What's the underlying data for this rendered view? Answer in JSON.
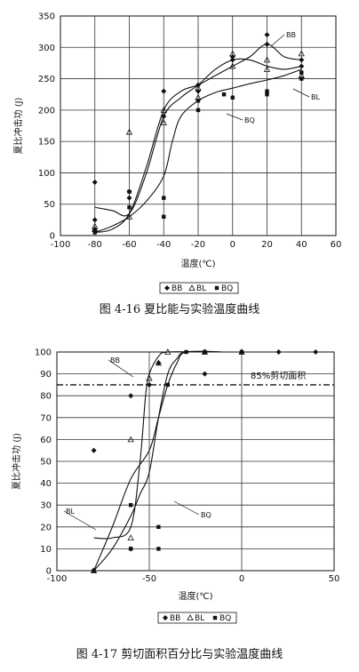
{
  "chart_data": [
    {
      "type": "scatter",
      "title": "",
      "caption": "图 4-16 夏比能与实验温度曲线",
      "xlabel": "温度(℃)",
      "ylabel": "夏比冲击功 (J)",
      "xlim": [
        -100,
        60
      ],
      "ylim": [
        0,
        350
      ],
      "xticks": [
        "-100",
        "-80",
        "-60",
        "-40",
        "-20",
        "0",
        "20",
        "40",
        "60"
      ],
      "yticks": [
        "0",
        "50",
        "100",
        "150",
        "200",
        "250",
        "300",
        "350"
      ],
      "grid": true,
      "legend_position": "bottom",
      "legend": [
        "BB",
        "BL",
        "BQ"
      ],
      "annotations": [
        "BB",
        "BL",
        "BQ"
      ],
      "series": [
        {
          "name": "BB",
          "marker": "diamond",
          "points": [
            [
              -80,
              85
            ],
            [
              -80,
              25
            ],
            [
              -80,
              10
            ],
            [
              -60,
              70
            ],
            [
              -60,
              60
            ],
            [
              -40,
              230
            ],
            [
              -40,
              190
            ],
            [
              -20,
              240
            ],
            [
              -20,
              230
            ],
            [
              0,
              280
            ],
            [
              0,
              285
            ],
            [
              20,
              320
            ],
            [
              20,
              305
            ],
            [
              40,
              270
            ],
            [
              40,
              280
            ]
          ],
          "curve": [
            [
              -80,
              5
            ],
            [
              -70,
              10
            ],
            [
              -60,
              35
            ],
            [
              -50,
              110
            ],
            [
              -40,
              200
            ],
            [
              -30,
              230
            ],
            [
              -20,
              240
            ],
            [
              -10,
              255
            ],
            [
              0,
              270
            ],
            [
              10,
              285
            ],
            [
              20,
              305
            ],
            [
              30,
              285
            ],
            [
              40,
              280
            ]
          ]
        },
        {
          "name": "BL",
          "marker": "triangle",
          "points": [
            [
              -80,
              15
            ],
            [
              -80,
              10
            ],
            [
              -60,
              165
            ],
            [
              -60,
              30
            ],
            [
              -40,
              200
            ],
            [
              -40,
              180
            ],
            [
              -20,
              235
            ],
            [
              -20,
              220
            ],
            [
              0,
              290
            ],
            [
              0,
              270
            ],
            [
              20,
              280
            ],
            [
              20,
              265
            ],
            [
              40,
              290
            ],
            [
              40,
              255
            ]
          ],
          "curve": [
            [
              -80,
              45
            ],
            [
              -70,
              40
            ],
            [
              -60,
              35
            ],
            [
              -50,
              100
            ],
            [
              -40,
              190
            ],
            [
              -30,
              220
            ],
            [
              -20,
              240
            ],
            [
              -10,
              265
            ],
            [
              0,
              280
            ],
            [
              10,
              280
            ],
            [
              20,
              270
            ],
            [
              30,
              265
            ],
            [
              40,
              270
            ]
          ]
        },
        {
          "name": "BQ",
          "marker": "square",
          "points": [
            [
              -80,
              8
            ],
            [
              -80,
              5
            ],
            [
              -60,
              70
            ],
            [
              -60,
              45
            ],
            [
              -40,
              60
            ],
            [
              -40,
              30
            ],
            [
              -20,
              200
            ],
            [
              -20,
              215
            ],
            [
              -5,
              225
            ],
            [
              0,
              220
            ],
            [
              20,
              230
            ],
            [
              20,
              225
            ],
            [
              40,
              260
            ],
            [
              40,
              250
            ]
          ],
          "curve": [
            [
              -80,
              5
            ],
            [
              -70,
              15
            ],
            [
              -60,
              30
            ],
            [
              -50,
              55
            ],
            [
              -40,
              95
            ],
            [
              -35,
              150
            ],
            [
              -30,
              190
            ],
            [
              -20,
              215
            ],
            [
              -10,
              228
            ],
            [
              0,
              235
            ],
            [
              10,
              242
            ],
            [
              20,
              248
            ],
            [
              30,
              255
            ],
            [
              40,
              265
            ]
          ]
        }
      ]
    },
    {
      "type": "scatter",
      "title": "",
      "caption": "图 4-17 剪切面积百分比与实验温度曲线",
      "xlabel": "温度(℃)",
      "ylabel": "夏比冲击功 (J)",
      "xlim": [
        -100,
        50
      ],
      "ylim": [
        0,
        100
      ],
      "xticks": [
        "-100",
        "-50",
        "0",
        "50"
      ],
      "yticks": [
        "0",
        "10",
        "20",
        "30",
        "40",
        "50",
        "60",
        "70",
        "80",
        "90",
        "100"
      ],
      "grid": true,
      "legend_position": "bottom",
      "legend": [
        "BB",
        "BL",
        "BQ"
      ],
      "annotations": [
        "BB",
        "BL",
        "BQ",
        "85%剪切面积"
      ],
      "reference_line": {
        "label": "85%剪切面积",
        "y": 85
      },
      "series": [
        {
          "name": "BB",
          "marker": "diamond",
          "points": [
            [
              -80,
              55
            ],
            [
              -60,
              80
            ],
            [
              -60,
              10
            ],
            [
              -50,
              85
            ],
            [
              -45,
              95
            ],
            [
              -20,
              90
            ],
            [
              -20,
              100
            ],
            [
              0,
              100
            ],
            [
              20,
              100
            ],
            [
              40,
              100
            ]
          ],
          "curve": [
            [
              -80,
              15
            ],
            [
              -70,
              15
            ],
            [
              -60,
              20
            ],
            [
              -55,
              50
            ],
            [
              -52,
              80
            ],
            [
              -50,
              90
            ],
            [
              -45,
              98
            ],
            [
              -40,
              100
            ],
            [
              -20,
              100
            ],
            [
              10,
              100
            ]
          ]
        },
        {
          "name": "BL",
          "marker": "triangle",
          "points": [
            [
              -80,
              0
            ],
            [
              -60,
              60
            ],
            [
              -60,
              15
            ],
            [
              -50,
              88
            ],
            [
              -45,
              95
            ],
            [
              -40,
              100
            ],
            [
              -20,
              100
            ],
            [
              0,
              100
            ]
          ],
          "curve": [
            [
              -80,
              0
            ],
            [
              -70,
              20
            ],
            [
              -60,
              42
            ],
            [
              -50,
              55
            ],
            [
              -45,
              70
            ],
            [
              -40,
              85
            ],
            [
              -35,
              95
            ],
            [
              -30,
              100
            ],
            [
              -10,
              100
            ]
          ]
        },
        {
          "name": "BQ",
          "marker": "square",
          "points": [
            [
              -80,
              0
            ],
            [
              -60,
              30
            ],
            [
              -60,
              10
            ],
            [
              -45,
              20
            ],
            [
              -45,
              10
            ],
            [
              -40,
              85
            ],
            [
              -30,
              100
            ],
            [
              -20,
              100
            ],
            [
              0,
              100
            ]
          ],
          "curve": [
            [
              -80,
              0
            ],
            [
              -70,
              10
            ],
            [
              -60,
              25
            ],
            [
              -55,
              35
            ],
            [
              -50,
              45
            ],
            [
              -45,
              70
            ],
            [
              -40,
              90
            ],
            [
              -35,
              97
            ],
            [
              -30,
              100
            ],
            [
              -10,
              100
            ]
          ]
        }
      ]
    }
  ]
}
